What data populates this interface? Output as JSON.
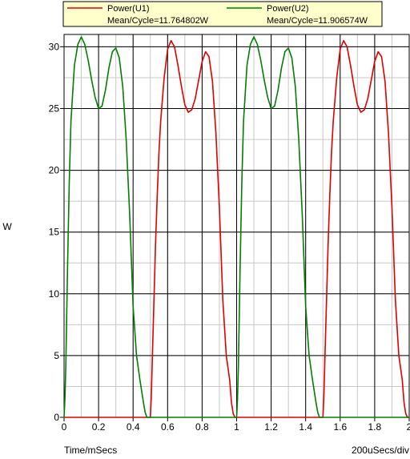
{
  "chart_data": {
    "type": "line",
    "xlabel": "Time/mSecs",
    "ylabel": "W",
    "xlim": [
      0,
      2
    ],
    "ylim": [
      0,
      31
    ],
    "x_ticks": [
      0,
      0.2,
      0.4,
      0.6,
      0.8,
      1,
      1.2,
      1.4,
      1.6,
      1.8,
      2
    ],
    "x_tick_labels": [
      "0",
      "0.2",
      "0.4",
      "0.6",
      "0.8",
      "1",
      "1.2",
      "1.4",
      "1.6",
      "1.8",
      "2"
    ],
    "y_ticks": [
      0,
      5,
      10,
      15,
      20,
      25,
      30
    ],
    "y_tick_labels": [
      "0",
      "5",
      "10",
      "15",
      "20",
      "25",
      "30"
    ],
    "x_minor_step": 0.1,
    "y_minor_step": 2.5,
    "grid": true,
    "scale_note": "200uSecs/div",
    "legend_position": "top",
    "series": [
      {
        "name": "Power(U1)",
        "stat": "Mean/Cycle=11.764802W",
        "color": "#e00000",
        "x": [
          0,
          0.49,
          0.5,
          0.505,
          0.51,
          0.52,
          0.53,
          0.54,
          0.55,
          0.56,
          0.58,
          0.6,
          0.62,
          0.64,
          0.66,
          0.68,
          0.7,
          0.72,
          0.74,
          0.76,
          0.78,
          0.8,
          0.82,
          0.84,
          0.86,
          0.88,
          0.9,
          0.92,
          0.94,
          0.96,
          0.97,
          0.98,
          0.99,
          0.995,
          1.0,
          1.49,
          1.5,
          1.505,
          1.51,
          1.52,
          1.53,
          1.54,
          1.55,
          1.56,
          1.58,
          1.6,
          1.62,
          1.64,
          1.66,
          1.68,
          1.7,
          1.72,
          1.74,
          1.76,
          1.78,
          1.8,
          1.82,
          1.84,
          1.86,
          1.88,
          1.9,
          1.92,
          1.94,
          1.96,
          1.97,
          1.98,
          1.99,
          1.995,
          2.0
        ],
        "y": [
          0,
          0,
          0,
          1.5,
          4,
          9,
          14,
          18,
          21.5,
          24,
          27.5,
          29.8,
          30.5,
          30,
          28.5,
          26.8,
          25.3,
          24.7,
          24.9,
          25.8,
          27.3,
          28.8,
          29.6,
          29.2,
          27.2,
          23,
          17,
          9.5,
          5,
          3,
          1.2,
          0.3,
          0,
          0,
          0,
          0,
          0,
          1.5,
          4,
          9,
          14,
          18,
          21.5,
          24,
          27.5,
          29.8,
          30.5,
          30,
          28.5,
          26.8,
          25.3,
          24.7,
          24.9,
          25.8,
          27.3,
          28.8,
          29.6,
          29.2,
          27.2,
          23,
          17,
          9.5,
          5,
          3,
          1.2,
          0.3,
          0,
          0,
          0
        ]
      },
      {
        "name": "Power(U2)",
        "stat": "Mean/Cycle=11.906574W",
        "color": "#008000",
        "x": [
          0,
          0.005,
          0.01,
          0.02,
          0.03,
          0.04,
          0.06,
          0.08,
          0.1,
          0.12,
          0.14,
          0.16,
          0.18,
          0.2,
          0.22,
          0.24,
          0.26,
          0.28,
          0.3,
          0.32,
          0.34,
          0.36,
          0.38,
          0.4,
          0.42,
          0.44,
          0.46,
          0.47,
          0.48,
          0.49,
          0.495,
          0.5,
          0.99,
          1.0,
          1.005,
          1.01,
          1.02,
          1.03,
          1.04,
          1.06,
          1.08,
          1.1,
          1.12,
          1.14,
          1.16,
          1.18,
          1.2,
          1.22,
          1.24,
          1.26,
          1.28,
          1.3,
          1.32,
          1.34,
          1.36,
          1.38,
          1.4,
          1.42,
          1.44,
          1.46,
          1.47,
          1.48,
          1.49,
          1.495,
          1.5,
          2.0
        ],
        "y": [
          0,
          1.5,
          4,
          12,
          19,
          24,
          28.5,
          30.2,
          30.8,
          30.2,
          28.9,
          27.3,
          25.9,
          25,
          25.2,
          26.5,
          28.3,
          29.6,
          29.9,
          29.1,
          26.8,
          22.5,
          16.5,
          9,
          5,
          3,
          1.2,
          0.4,
          0,
          0,
          0,
          0,
          0,
          0,
          1.5,
          4,
          12,
          19,
          24,
          28.5,
          30.2,
          30.8,
          30.2,
          28.9,
          27.3,
          25.9,
          25,
          25.2,
          26.5,
          28.3,
          29.6,
          29.9,
          29.1,
          26.8,
          22.5,
          16.5,
          9,
          5,
          3,
          1.2,
          0.4,
          0,
          0,
          0,
          0,
          0
        ]
      }
    ]
  }
}
